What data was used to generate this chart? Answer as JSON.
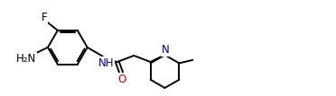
{
  "bg_color": "#ffffff",
  "bond_color": "#000000",
  "atom_color_N": "#0000b0",
  "atom_color_O": "#cc0000",
  "line_width": 1.4,
  "font_size": 8.5,
  "figsize": [
    3.72,
    1.07
  ],
  "dpi": 100,
  "xlim": [
    0.0,
    10.5
  ],
  "ylim": [
    0.2,
    3.0
  ]
}
